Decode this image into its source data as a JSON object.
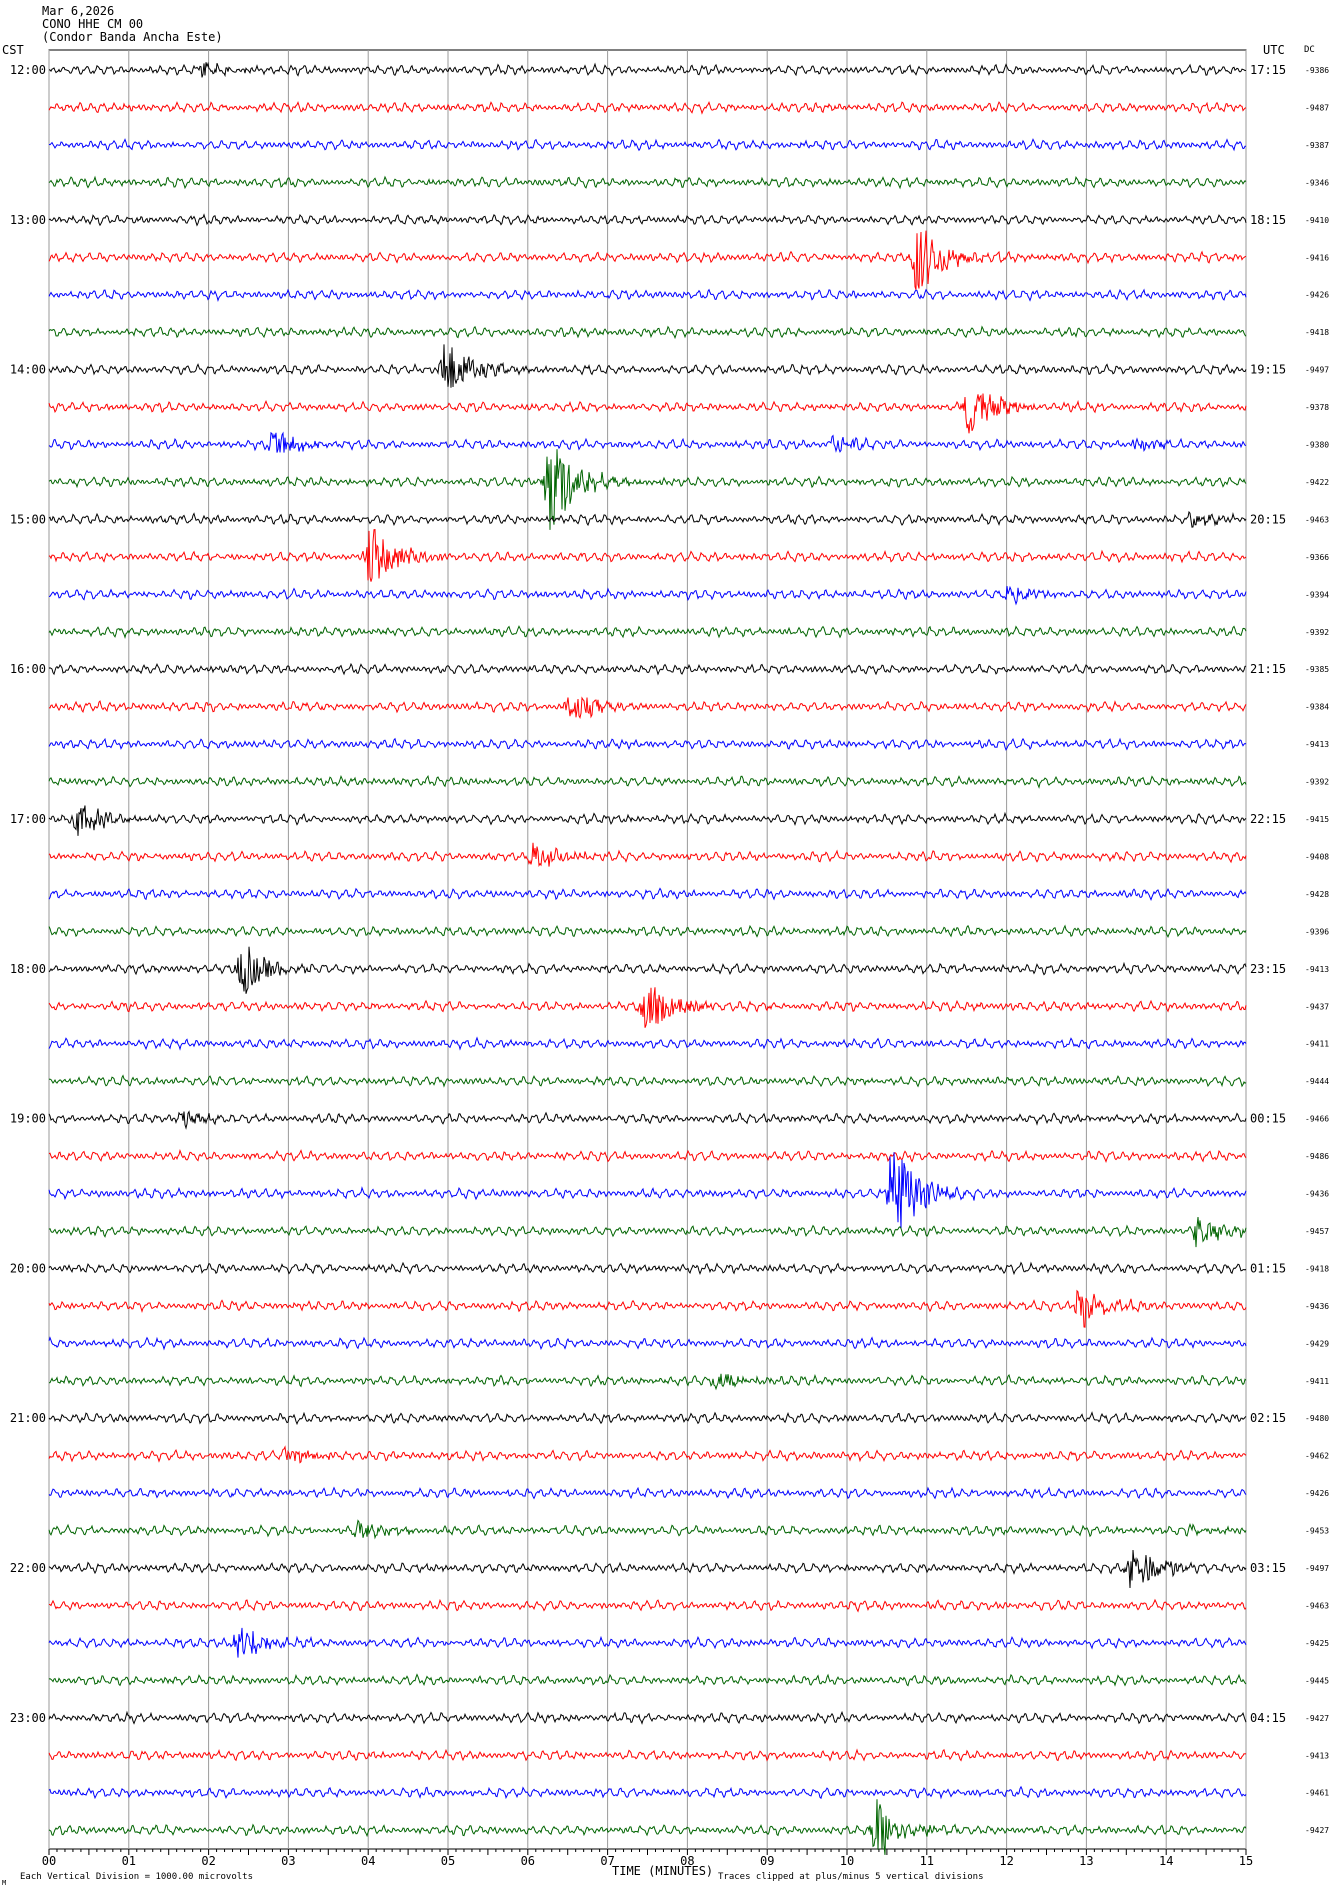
{
  "header": {
    "date": "Mar 6,2026",
    "station": "CONO HHE CM 00",
    "site": "(Condor Banda Ancha Este)",
    "left_zone": "CST",
    "right_zone": "UTC",
    "dc_label": "DC"
  },
  "footer": {
    "xlabel": "TIME (MINUTES)",
    "scale_note": "Each Vertical Division = 1000.00 microvolts",
    "clip_note": "Traces clipped at plus/minus 5 vertical divisions",
    "corner_mark": "M"
  },
  "colors": [
    "#000000",
    "#ff0000",
    "#0000ff",
    "#006400"
  ],
  "chart_data": {
    "type": "line",
    "title": "",
    "xlabel": "TIME (MINUTES)",
    "ylabel": "",
    "xlim": [
      0,
      15
    ],
    "x_ticks": [
      "00",
      "01",
      "02",
      "03",
      "04",
      "05",
      "06",
      "07",
      "08",
      "09",
      "10",
      "11",
      "12",
      "13",
      "14",
      "15"
    ],
    "grid": true,
    "rows_per_hour": 4,
    "hour_labels_cst": [
      "12:00",
      "13:00",
      "14:00",
      "15:00",
      "16:00",
      "17:00",
      "18:00",
      "19:00",
      "20:00",
      "21:00",
      "22:00",
      "23:00"
    ],
    "hour_labels_utc": [
      "17:15",
      "18:15",
      "19:15",
      "20:15",
      "21:15",
      "22:15",
      "23:15",
      "00:15",
      "01:15",
      "02:15",
      "03:15",
      "04:15"
    ],
    "dc_offsets": [
      -9386,
      -9487,
      -9387,
      -9346,
      -9410,
      -9416,
      -9426,
      -9418,
      -9497,
      -9378,
      -9380,
      -9422,
      -9463,
      -9366,
      -9394,
      -9392,
      -9385,
      -9384,
      -9413,
      -9392,
      -9415,
      -9408,
      -9428,
      -9396,
      -9413,
      -9437,
      -9411,
      -9444,
      -9466,
      -9486,
      -9436,
      -9457,
      -9418,
      -9436,
      -9429,
      -9411,
      -9480,
      -9462,
      -9426,
      -9453,
      -9497,
      -9463,
      -9425,
      -9445,
      -9427,
      -9413,
      -9461,
      -9427
    ],
    "events": [
      {
        "row": 0,
        "minute": 1.9,
        "amp": 0.8
      },
      {
        "row": 5,
        "minute": 10.85,
        "amp": 3.6
      },
      {
        "row": 8,
        "minute": 4.95,
        "amp": 2.8
      },
      {
        "row": 9,
        "minute": 11.5,
        "amp": 2.5
      },
      {
        "row": 10,
        "minute": 2.8,
        "amp": 1.3
      },
      {
        "row": 10,
        "minute": 9.8,
        "amp": 0.8
      },
      {
        "row": 10,
        "minute": 13.6,
        "amp": 0.7
      },
      {
        "row": 11,
        "minute": 6.25,
        "amp": 4.8
      },
      {
        "row": 13,
        "minute": 4.0,
        "amp": 3.0
      },
      {
        "row": 12,
        "minute": 14.3,
        "amp": 0.7
      },
      {
        "row": 14,
        "minute": 12.0,
        "amp": 0.8
      },
      {
        "row": 17,
        "minute": 6.5,
        "amp": 1.4
      },
      {
        "row": 20,
        "minute": 0.3,
        "amp": 1.8
      },
      {
        "row": 21,
        "minute": 6.05,
        "amp": 1.1
      },
      {
        "row": 24,
        "minute": 2.4,
        "amp": 2.4
      },
      {
        "row": 25,
        "minute": 7.45,
        "amp": 2.5
      },
      {
        "row": 28,
        "minute": 1.65,
        "amp": 0.8
      },
      {
        "row": 30,
        "minute": 10.55,
        "amp": 5.0
      },
      {
        "row": 31,
        "minute": 14.35,
        "amp": 1.6
      },
      {
        "row": 33,
        "minute": 12.9,
        "amp": 2.1
      },
      {
        "row": 35,
        "minute": 8.35,
        "amp": 0.9
      },
      {
        "row": 37,
        "minute": 2.95,
        "amp": 0.9
      },
      {
        "row": 39,
        "minute": 3.85,
        "amp": 0.8
      },
      {
        "row": 39,
        "minute": 14.3,
        "amp": 0.5
      },
      {
        "row": 40,
        "minute": 13.55,
        "amp": 2.3
      },
      {
        "row": 42,
        "minute": 2.35,
        "amp": 1.8
      },
      {
        "row": 47,
        "minute": 10.35,
        "amp": 3.0
      }
    ]
  }
}
